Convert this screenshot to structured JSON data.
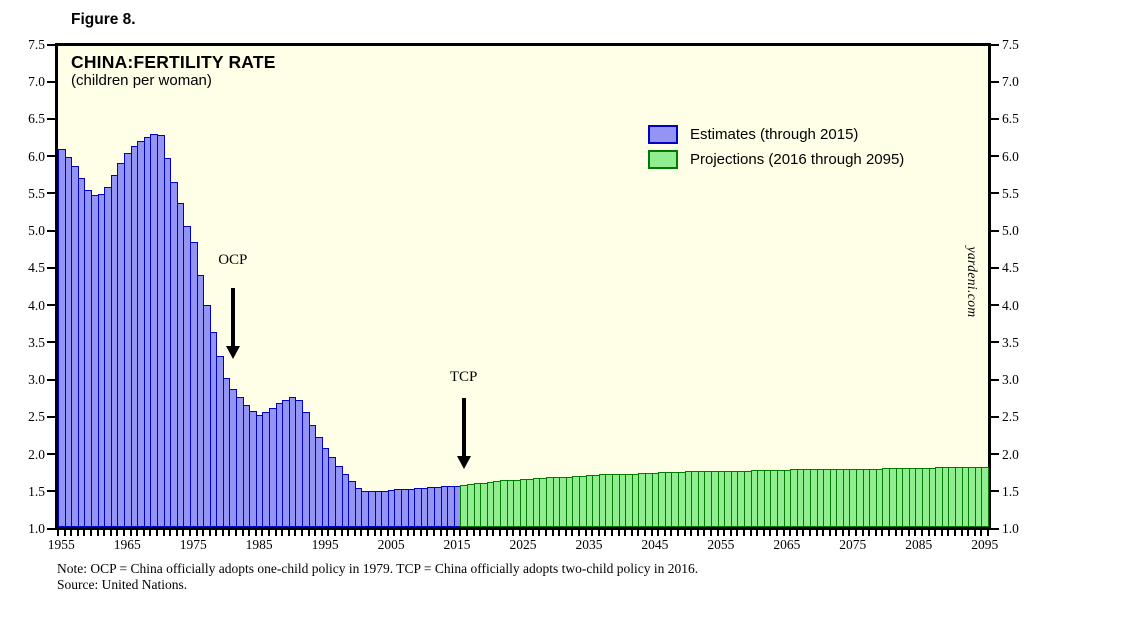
{
  "figure_label": "Figure 8.",
  "watermark": "yardeni.com",
  "note": {
    "line1": "Note: OCP = China officially adopts one-child policy in 1979. TCP = China officially adopts two-child policy in 2016.",
    "line2": "Source: United Nations."
  },
  "colors": {
    "plot_background": "#FFFFE8",
    "estimates_fill": "#9494F2",
    "estimates_border": "#0000CC",
    "projections_fill": "#90EE90",
    "projections_border": "#007A00",
    "axis": "#000000"
  },
  "chart_data": {
    "type": "bar",
    "title": "CHINA:FERTILITY RATE",
    "subtitle": "(children per woman)",
    "ylabel": "",
    "ylim": [
      1.0,
      7.5
    ],
    "ytick_step": 0.5,
    "x_start": 1955,
    "x_end": 2095,
    "xtick_labels": [
      1955,
      1965,
      1975,
      1985,
      1995,
      2005,
      2015,
      2025,
      2035,
      2045,
      2055,
      2065,
      2075,
      2085,
      2095
    ],
    "grid": false,
    "legend_position": "inside-upper-right",
    "series": [
      {
        "name": "Estimates (through 2015)",
        "start_year": 1955,
        "fill": "#9494F2",
        "border": "#0000CC",
        "values": [
          6.11,
          6.0,
          5.88,
          5.72,
          5.55,
          5.48,
          5.5,
          5.6,
          5.75,
          5.92,
          6.05,
          6.15,
          6.21,
          6.27,
          6.31,
          6.3,
          5.98,
          5.66,
          5.38,
          5.07,
          4.85,
          4.41,
          4.0,
          3.64,
          3.31,
          3.01,
          2.87,
          2.75,
          2.65,
          2.57,
          2.52,
          2.55,
          2.61,
          2.67,
          2.72,
          2.76,
          2.72,
          2.55,
          2.38,
          2.22,
          2.07,
          1.95,
          1.83,
          1.72,
          1.62,
          1.53,
          1.49,
          1.48,
          1.48,
          1.49,
          1.5,
          1.51,
          1.52,
          1.52,
          1.53,
          1.53,
          1.54,
          1.54,
          1.55,
          1.55,
          1.56
        ]
      },
      {
        "name": "Projections (2016 through 2095)",
        "start_year": 2016,
        "fill": "#90EE90",
        "border": "#007A00",
        "values": [
          1.57,
          1.58,
          1.59,
          1.6,
          1.61,
          1.62,
          1.63,
          1.63,
          1.64,
          1.65,
          1.65,
          1.66,
          1.66,
          1.67,
          1.67,
          1.68,
          1.68,
          1.69,
          1.69,
          1.7,
          1.7,
          1.71,
          1.71,
          1.71,
          1.72,
          1.72,
          1.72,
          1.73,
          1.73,
          1.73,
          1.74,
          1.74,
          1.74,
          1.74,
          1.75,
          1.75,
          1.75,
          1.75,
          1.75,
          1.76,
          1.76,
          1.76,
          1.76,
          1.76,
          1.77,
          1.77,
          1.77,
          1.77,
          1.77,
          1.77,
          1.78,
          1.78,
          1.78,
          1.78,
          1.78,
          1.78,
          1.78,
          1.79,
          1.79,
          1.79,
          1.79,
          1.79,
          1.79,
          1.79,
          1.8,
          1.8,
          1.8,
          1.8,
          1.8,
          1.8,
          1.8,
          1.8,
          1.81,
          1.81,
          1.81,
          1.81,
          1.81,
          1.81,
          1.81,
          1.81
        ]
      }
    ],
    "annotations": [
      {
        "label": "OCP",
        "year": 1981
      },
      {
        "label": "TCP",
        "year": 2016
      }
    ]
  }
}
